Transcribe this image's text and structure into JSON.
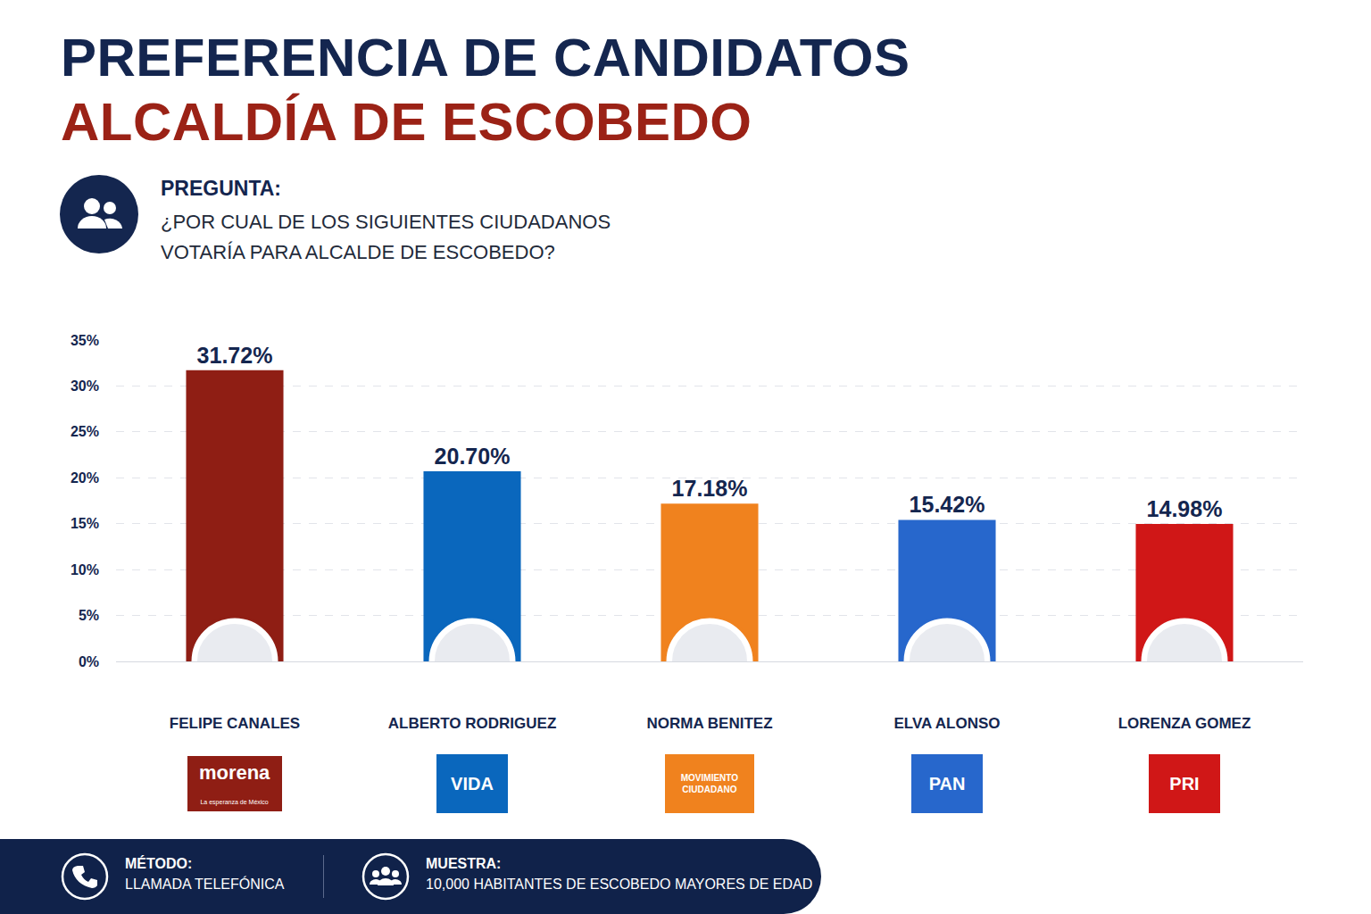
{
  "chart_data": {
    "type": "bar",
    "title": "PREFERENCIA DE CANDIDATOS",
    "subtitle": "ALCALDÍA DE ESCOBEDO",
    "categories": [
      "FELIPE CANALES",
      "ALBERTO RODRIGUEZ",
      "NORMA BENITEZ",
      "ELVA ALONSO",
      "LORENZA GOMEZ"
    ],
    "values": [
      31.72,
      20.7,
      17.18,
      15.42,
      14.98
    ],
    "value_labels": [
      "31.72%",
      "20.70%",
      "17.18%",
      "15.42%",
      "14.98%"
    ],
    "colors": [
      "#8f1e14",
      "#0a67bd",
      "#f0821e",
      "#2767cc",
      "#d01717"
    ],
    "ylim": [
      0,
      35
    ],
    "yticks": [
      {
        "value": 0,
        "label": "0%"
      },
      {
        "value": 5,
        "label": "5%"
      },
      {
        "value": 10,
        "label": "10%"
      },
      {
        "value": 15,
        "label": "15%"
      },
      {
        "value": 20,
        "label": "20%"
      },
      {
        "value": 25,
        "label": "25%"
      },
      {
        "value": 30,
        "label": "30%"
      },
      {
        "value": 35,
        "label": "35%"
      }
    ],
    "grid": true,
    "data_labels": true
  },
  "question": {
    "label": "PREGUNTA:",
    "text": "¿POR CUAL DE LOS SIGUIENTES CIUDADANOS VOTARÍA PARA ALCALDE DE ESCOBEDO?"
  },
  "parties": [
    {
      "name": "morena",
      "tagline": "La esperanza de México"
    },
    {
      "name": "VIDA"
    },
    {
      "name": "MOVIMIENTO CIUDADANO"
    },
    {
      "name": "PAN"
    },
    {
      "name": "PRI"
    }
  ],
  "method": {
    "label": "MÉTODO:",
    "text": "LLAMADA TELEFÓNICA"
  },
  "sample": {
    "label": "MUESTRA:",
    "text": "10,000 HABITANTES DE ESCOBEDO MAYORES DE EDAD"
  }
}
